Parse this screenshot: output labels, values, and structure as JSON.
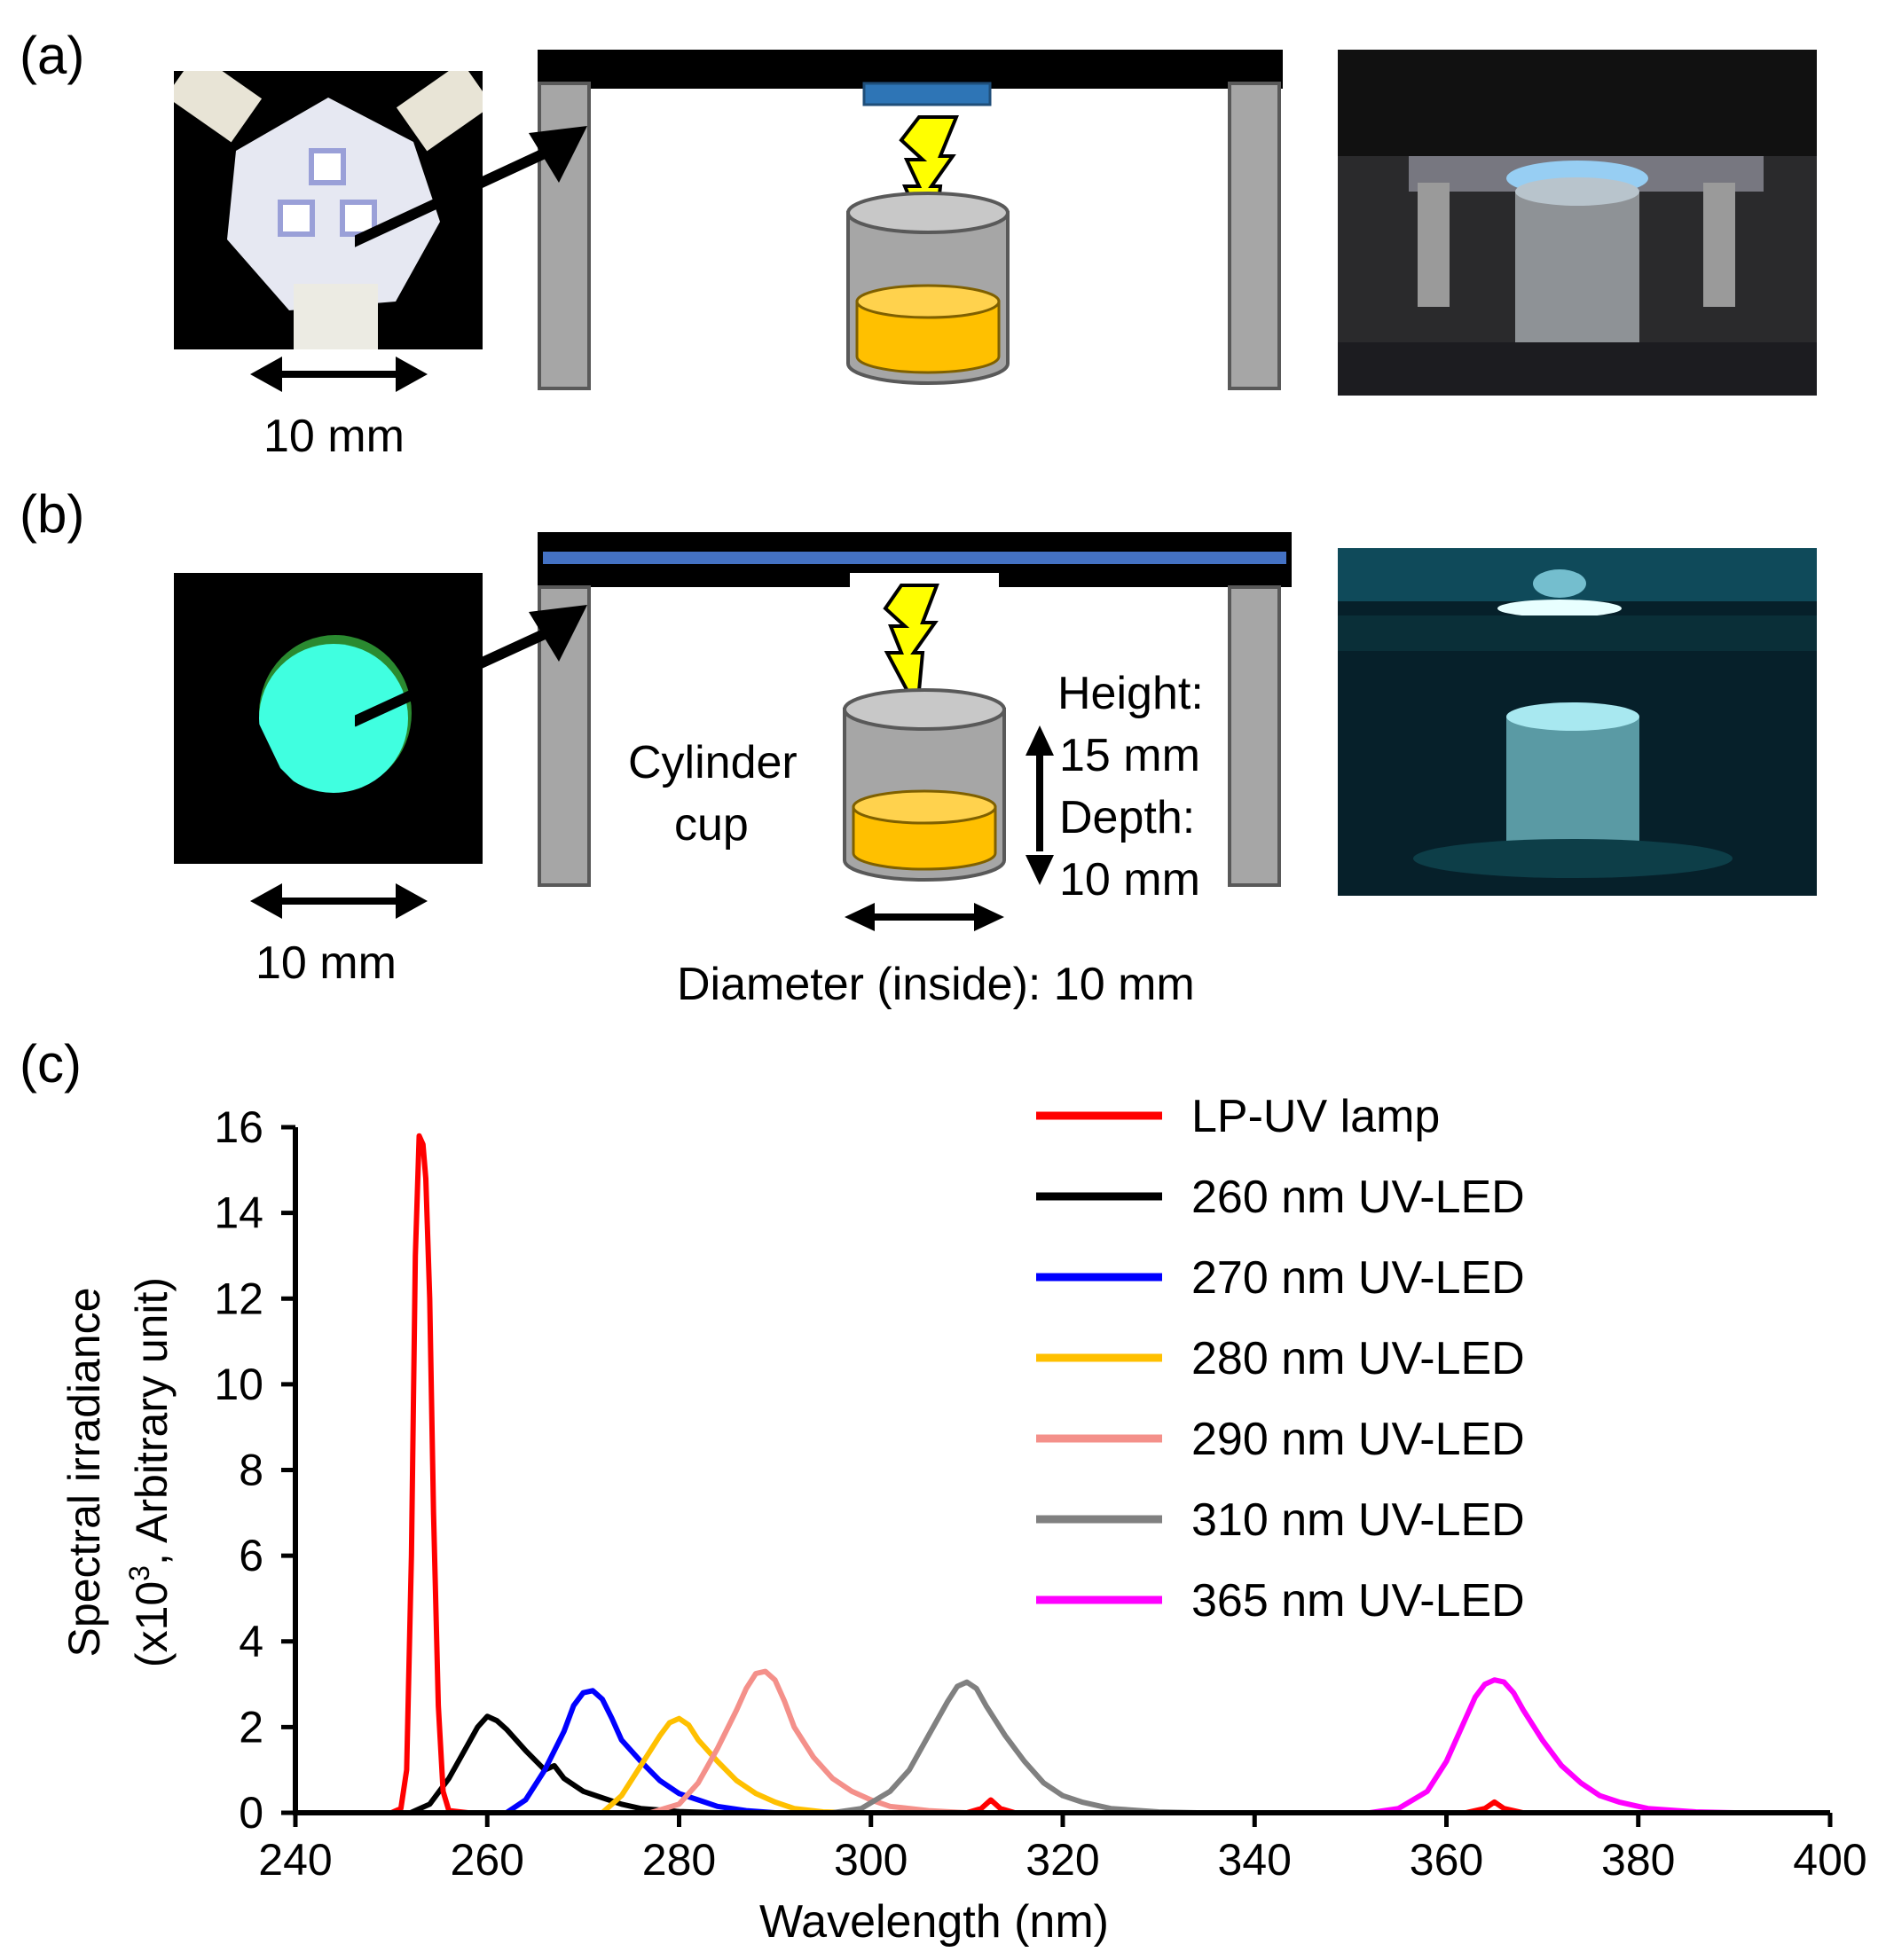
{
  "panels": {
    "a": {
      "label": "(a)",
      "scale_label": "10 mm",
      "led_board_photo": "uv-led-board-photo",
      "apparatus_photo": "led-apparatus-photo"
    },
    "b": {
      "label": "(b)",
      "scale_label": "10 mm",
      "cup_label_line1": "Cylinder",
      "cup_label_line2": "cup",
      "height_line1": "Height:",
      "height_line2": "15 mm",
      "depth_line1": "Depth:",
      "depth_line2": "10 mm",
      "diameter_label": "Diameter (inside): 10 mm",
      "beam_photo": "lp-uv-lamp-beam-photo",
      "apparatus_photo": "lamp-apparatus-photo"
    },
    "c": {
      "label": "(c)"
    }
  },
  "colors": {
    "cup_body": "#a6a6a6",
    "cup_top": "#c8c8c8",
    "sample": "#ffc000",
    "sample_top": "#ffd24d",
    "led_chip": "#2e75b6",
    "lamp_tube": "#4472c4",
    "bolt": "#ffff00",
    "leg": "#a6a6a6"
  },
  "chart_data": {
    "type": "line",
    "xlabel": "Wavelength (nm)",
    "ylabel_line1": "Spectral irradiance",
    "ylabel_line2_pre": "(x10",
    "ylabel_line2_sup": "3",
    "ylabel_line2_post": ", Arbitrary unit)",
    "xlim": [
      240,
      400
    ],
    "ylim": [
      0,
      16
    ],
    "xticks": [
      "240",
      "260",
      "280",
      "300",
      "320",
      "340",
      "360",
      "380",
      "400"
    ],
    "yticks": [
      "0",
      "2",
      "4",
      "6",
      "8",
      "10",
      "12",
      "14",
      "16"
    ],
    "grid": false,
    "legend_position": "top-right",
    "series": [
      {
        "name": "LP-UV lamp",
        "color": "#ff0000",
        "points": [
          [
            240,
            0
          ],
          [
            250,
            0
          ],
          [
            251,
            0.1
          ],
          [
            251.6,
            1
          ],
          [
            252.1,
            6
          ],
          [
            252.5,
            13
          ],
          [
            252.9,
            15.8
          ],
          [
            253.3,
            15.6
          ],
          [
            253.6,
            14.8
          ],
          [
            254,
            12
          ],
          [
            254.4,
            7
          ],
          [
            254.9,
            2.5
          ],
          [
            255.4,
            0.5
          ],
          [
            256,
            0.05
          ],
          [
            258,
            0
          ],
          [
            310,
            0
          ],
          [
            311.5,
            0.1
          ],
          [
            312.5,
            0.3
          ],
          [
            313.5,
            0.1
          ],
          [
            315,
            0
          ],
          [
            362,
            0
          ],
          [
            364,
            0.1
          ],
          [
            365,
            0.25
          ],
          [
            366,
            0.1
          ],
          [
            368,
            0
          ],
          [
            400,
            0
          ]
        ]
      },
      {
        "name": "260 nm UV-LED",
        "color": "#000000",
        "points": [
          [
            240,
            0
          ],
          [
            252,
            0
          ],
          [
            254,
            0.2
          ],
          [
            256,
            0.8
          ],
          [
            258,
            1.6
          ],
          [
            259,
            2.0
          ],
          [
            260,
            2.25
          ],
          [
            261,
            2.15
          ],
          [
            262,
            1.95
          ],
          [
            264,
            1.45
          ],
          [
            266,
            1.0
          ],
          [
            267,
            1.1
          ],
          [
            268,
            0.8
          ],
          [
            270,
            0.5
          ],
          [
            272,
            0.35
          ],
          [
            274,
            0.2
          ],
          [
            276,
            0.1
          ],
          [
            280,
            0.03
          ],
          [
            284,
            0
          ],
          [
            400,
            0
          ]
        ]
      },
      {
        "name": "270 nm UV-LED",
        "color": "#0000ff",
        "points": [
          [
            240,
            0
          ],
          [
            262,
            0
          ],
          [
            264,
            0.3
          ],
          [
            266,
            1.0
          ],
          [
            268,
            1.9
          ],
          [
            269,
            2.5
          ],
          [
            270,
            2.8
          ],
          [
            271,
            2.85
          ],
          [
            272,
            2.65
          ],
          [
            273,
            2.2
          ],
          [
            274,
            1.7
          ],
          [
            276,
            1.2
          ],
          [
            278,
            0.75
          ],
          [
            280,
            0.45
          ],
          [
            282,
            0.3
          ],
          [
            284,
            0.15
          ],
          [
            287,
            0.05
          ],
          [
            290,
            0
          ],
          [
            400,
            0
          ]
        ]
      },
      {
        "name": "280 nm UV-LED",
        "color": "#ffc000",
        "points": [
          [
            240,
            0
          ],
          [
            272,
            0
          ],
          [
            274,
            0.4
          ],
          [
            276,
            1.1
          ],
          [
            278,
            1.8
          ],
          [
            279,
            2.1
          ],
          [
            280,
            2.2
          ],
          [
            281,
            2.05
          ],
          [
            282,
            1.7
          ],
          [
            284,
            1.2
          ],
          [
            286,
            0.75
          ],
          [
            288,
            0.45
          ],
          [
            290,
            0.25
          ],
          [
            292,
            0.1
          ],
          [
            295,
            0.02
          ],
          [
            298,
            0
          ],
          [
            400,
            0
          ]
        ]
      },
      {
        "name": "290 nm UV-LED",
        "color": "#f4908a",
        "points": [
          [
            240,
            0
          ],
          [
            277,
            0
          ],
          [
            280,
            0.2
          ],
          [
            282,
            0.7
          ],
          [
            284,
            1.5
          ],
          [
            286,
            2.4
          ],
          [
            287,
            2.9
          ],
          [
            288,
            3.25
          ],
          [
            289,
            3.3
          ],
          [
            290,
            3.1
          ],
          [
            291,
            2.6
          ],
          [
            292,
            2.0
          ],
          [
            294,
            1.3
          ],
          [
            296,
            0.8
          ],
          [
            298,
            0.5
          ],
          [
            300,
            0.3
          ],
          [
            302,
            0.15
          ],
          [
            306,
            0.05
          ],
          [
            310,
            0
          ],
          [
            400,
            0
          ]
        ]
      },
      {
        "name": "310 nm UV-LED",
        "color": "#808080",
        "points": [
          [
            240,
            0
          ],
          [
            296,
            0
          ],
          [
            299,
            0.1
          ],
          [
            302,
            0.5
          ],
          [
            304,
            1.0
          ],
          [
            306,
            1.8
          ],
          [
            308,
            2.6
          ],
          [
            309,
            2.95
          ],
          [
            310,
            3.05
          ],
          [
            311,
            2.9
          ],
          [
            312,
            2.5
          ],
          [
            314,
            1.8
          ],
          [
            316,
            1.2
          ],
          [
            318,
            0.7
          ],
          [
            320,
            0.4
          ],
          [
            322,
            0.25
          ],
          [
            325,
            0.1
          ],
          [
            330,
            0.02
          ],
          [
            334,
            0
          ],
          [
            400,
            0
          ]
        ]
      },
      {
        "name": "365 nm UV-LED",
        "color": "#ff00ff",
        "points": [
          [
            240,
            0
          ],
          [
            352,
            0
          ],
          [
            355,
            0.1
          ],
          [
            358,
            0.5
          ],
          [
            360,
            1.2
          ],
          [
            362,
            2.2
          ],
          [
            363,
            2.7
          ],
          [
            364,
            3.0
          ],
          [
            365,
            3.1
          ],
          [
            366,
            3.05
          ],
          [
            367,
            2.8
          ],
          [
            368,
            2.4
          ],
          [
            370,
            1.7
          ],
          [
            372,
            1.1
          ],
          [
            374,
            0.7
          ],
          [
            376,
            0.4
          ],
          [
            378,
            0.25
          ],
          [
            381,
            0.1
          ],
          [
            386,
            0.02
          ],
          [
            390,
            0
          ],
          [
            400,
            0
          ]
        ]
      }
    ]
  }
}
